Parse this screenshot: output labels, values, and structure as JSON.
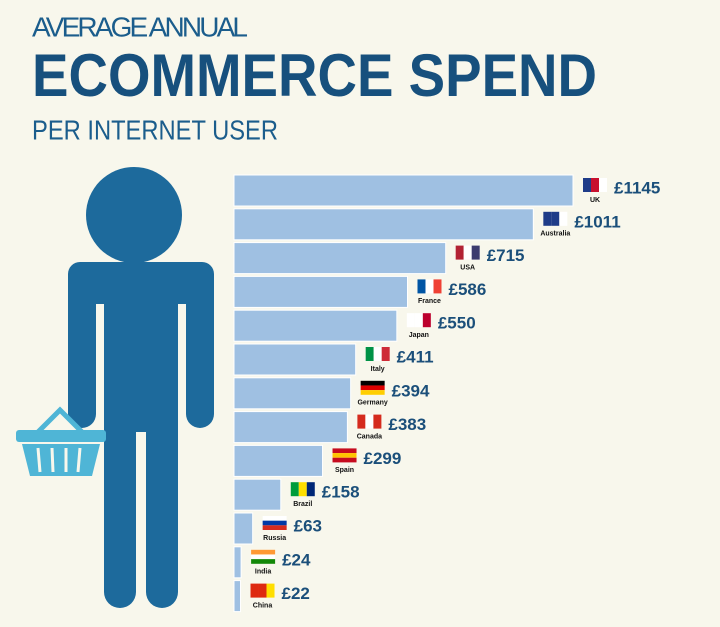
{
  "chart_data": {
    "type": "bar",
    "orientation": "horizontal",
    "title": "AVERAGE ANNUAL",
    "subtitle": "ECOMMERCE SPEND",
    "caption": "PER INTERNET USER",
    "categories": [
      "UK",
      "Australia",
      "USA",
      "France",
      "Japan",
      "Italy",
      "Germany",
      "Canada",
      "Spain",
      "Brazil",
      "Russia",
      "India",
      "China"
    ],
    "values": [
      1145,
      1011,
      715,
      586,
      550,
      411,
      394,
      383,
      299,
      158,
      63,
      24,
      22
    ],
    "value_labels": [
      "£1145",
      "£1011",
      "£715",
      "£586",
      "£550",
      "£411",
      "£394",
      "£383",
      "£299",
      "£158",
      "£63",
      "£24",
      "£22"
    ],
    "color": "#9fc0e2"
  }
}
